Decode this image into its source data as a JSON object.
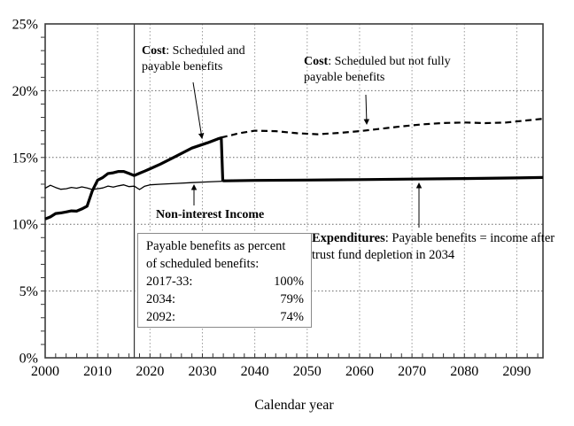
{
  "colors": {
    "line": "#000000",
    "grid_h": "#666666",
    "grid_v": "#999999",
    "border": "#3c3c3c",
    "background": "#ffffff"
  },
  "annotations": {
    "cost_payable": {
      "bold": "Cost",
      "rest": ": Scheduled and payable benefits"
    },
    "cost_scheduled": {
      "bold": "Cost",
      "rest": ": Scheduled but not fully payable benefits"
    },
    "expenditures": {
      "bold": "Expenditures",
      "rest": ": Payable benefits = income after trust fund depletion in 2034"
    },
    "non_interest": "Non-interest Income",
    "info_box": {
      "line1": "Payable benefits as percent",
      "line2": "of scheduled benefits:",
      "rows": [
        {
          "label": "2017-33:",
          "value": "100%"
        },
        {
          "label": "2034:",
          "value": "79%"
        },
        {
          "label": "2092:",
          "value": "74%"
        }
      ]
    }
  },
  "chart_data": {
    "type": "line",
    "title": "",
    "xlabel": "Calendar year",
    "ylabel": "",
    "xlim": [
      2000,
      2095
    ],
    "ylim": [
      0,
      25
    ],
    "grid": true,
    "legend_position": "none",
    "x_ticks": [
      2000,
      2010,
      2020,
      2030,
      2040,
      2050,
      2060,
      2070,
      2080,
      2090
    ],
    "x_tick_labels": [
      "2000",
      "2010",
      "2020",
      "2030",
      "2040",
      "2050",
      "2060",
      "2070",
      "2080",
      "2090"
    ],
    "y_ticks": [
      0,
      5,
      10,
      15,
      20,
      25
    ],
    "y_tick_labels": [
      "0%",
      "5%",
      "10%",
      "15%",
      "20%",
      "25%"
    ],
    "x_minor_tick_step": 2,
    "y_minor_tick_step": 1,
    "current_year_marker": 2017,
    "series": [
      {
        "name": "Cost: Scheduled but not fully payable benefits",
        "style": "dashed",
        "points": [
          [
            2033.6,
            16.5
          ],
          [
            2035,
            16.62
          ],
          [
            2037,
            16.82
          ],
          [
            2040,
            17.0
          ],
          [
            2044,
            16.97
          ],
          [
            2048,
            16.82
          ],
          [
            2052,
            16.74
          ],
          [
            2056,
            16.84
          ],
          [
            2060,
            16.97
          ],
          [
            2064,
            17.15
          ],
          [
            2068,
            17.33
          ],
          [
            2072,
            17.48
          ],
          [
            2076,
            17.58
          ],
          [
            2080,
            17.62
          ],
          [
            2084,
            17.57
          ],
          [
            2088,
            17.62
          ],
          [
            2092,
            17.78
          ],
          [
            2095,
            17.9
          ]
        ]
      },
      {
        "name": "Non-interest Income",
        "style": "thin-solid",
        "points": [
          [
            2000,
            12.7
          ],
          [
            2001,
            12.92
          ],
          [
            2002,
            12.75
          ],
          [
            2003,
            12.62
          ],
          [
            2004,
            12.66
          ],
          [
            2005,
            12.76
          ],
          [
            2006,
            12.7
          ],
          [
            2007,
            12.8
          ],
          [
            2008,
            12.72
          ],
          [
            2009,
            12.6
          ],
          [
            2010,
            12.66
          ],
          [
            2011,
            12.72
          ],
          [
            2012,
            12.86
          ],
          [
            2013,
            12.78
          ],
          [
            2014,
            12.88
          ],
          [
            2015,
            12.95
          ],
          [
            2016,
            12.82
          ],
          [
            2017,
            12.85
          ],
          [
            2018,
            12.6
          ],
          [
            2019,
            12.85
          ],
          [
            2020,
            12.95
          ],
          [
            2022,
            13.0
          ],
          [
            2025,
            13.06
          ],
          [
            2028,
            13.12
          ],
          [
            2031,
            13.17
          ],
          [
            2034,
            13.22
          ]
        ]
      },
      {
        "name": "Cost: Scheduled and payable benefits",
        "style": "thick-solid",
        "points": [
          [
            2000,
            10.4
          ],
          [
            2001,
            10.55
          ],
          [
            2002,
            10.8
          ],
          [
            2003,
            10.85
          ],
          [
            2004,
            10.92
          ],
          [
            2005,
            11.0
          ],
          [
            2006,
            10.98
          ],
          [
            2007,
            11.15
          ],
          [
            2008,
            11.35
          ],
          [
            2009,
            12.5
          ],
          [
            2010,
            13.3
          ],
          [
            2011,
            13.5
          ],
          [
            2012,
            13.8
          ],
          [
            2013,
            13.85
          ],
          [
            2014,
            13.95
          ],
          [
            2015,
            13.95
          ],
          [
            2016,
            13.8
          ],
          [
            2017,
            13.65
          ],
          [
            2018,
            13.82
          ],
          [
            2019,
            13.98
          ],
          [
            2020,
            14.15
          ],
          [
            2022,
            14.5
          ],
          [
            2025,
            15.1
          ],
          [
            2028,
            15.7
          ],
          [
            2031,
            16.1
          ],
          [
            2033,
            16.4
          ],
          [
            2033.6,
            16.47
          ],
          [
            2033.9,
            13.25
          ]
        ]
      },
      {
        "name": "Expenditures: Payable benefits = income after trust fund depletion in 2034",
        "style": "thick-solid",
        "points": [
          [
            2033.9,
            13.25
          ],
          [
            2040,
            13.28
          ],
          [
            2050,
            13.31
          ],
          [
            2060,
            13.34
          ],
          [
            2070,
            13.38
          ],
          [
            2080,
            13.42
          ],
          [
            2090,
            13.47
          ],
          [
            2095,
            13.5
          ]
        ]
      }
    ]
  }
}
